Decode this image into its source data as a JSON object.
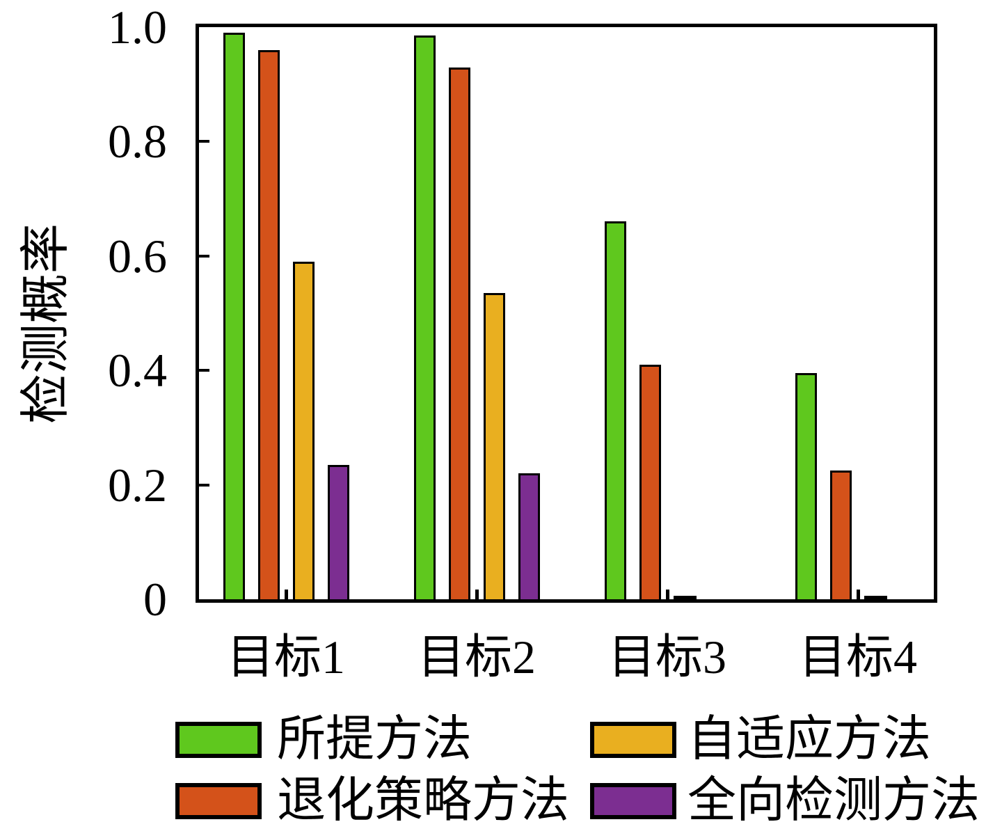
{
  "chart_data": {
    "type": "bar",
    "title": "",
    "xlabel": "",
    "ylabel": "检测概率",
    "categories": [
      "目标1",
      "目标2",
      "目标3",
      "目标4"
    ],
    "series": [
      {
        "name": "所提方法",
        "color": "#5FC81E",
        "values": [
          0.99,
          0.985,
          0.66,
          0.395
        ]
      },
      {
        "name": "退化策略方法",
        "color": "#D4521A",
        "values": [
          0.96,
          0.93,
          0.41,
          0.225
        ]
      },
      {
        "name": "自适应方法",
        "color": "#E9AF20",
        "values": [
          0.59,
          0.535,
          0.005,
          0.005
        ]
      },
      {
        "name": "全向检测方法",
        "color": "#7C2E91",
        "values": [
          0.235,
          0.22,
          0.0,
          0.0
        ]
      }
    ],
    "ylim": [
      0,
      1.0
    ],
    "yticks": [
      {
        "value": 1.0,
        "label": "1.0"
      },
      {
        "value": 0.8,
        "label": "0.8"
      },
      {
        "value": 0.6,
        "label": "0.6"
      },
      {
        "value": 0.4,
        "label": "0.4"
      },
      {
        "value": 0.2,
        "label": "0.2"
      },
      {
        "value": 0.0,
        "label": "0"
      }
    ],
    "grid": false,
    "bar_outline_color": "#000000",
    "legend_position": "below-chart",
    "legend_layout": [
      [
        "所提方法",
        "自适应方法"
      ],
      [
        "退化策略方法",
        "全向检测方法"
      ]
    ]
  },
  "colors": {
    "background": "#FFFFFF",
    "axis": "#000000",
    "text": "#000000"
  }
}
